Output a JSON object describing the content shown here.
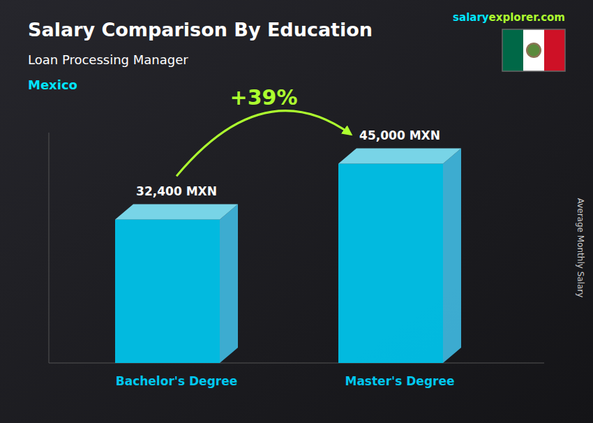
{
  "chart_data": {
    "type": "bar",
    "title": "Salary Comparison By Education",
    "subtitle": "Loan Processing Manager",
    "ylabel": "Average Monthly Salary",
    "categories": [
      "Bachelor's Degree",
      "Master's Degree"
    ],
    "values": [
      32400,
      45000
    ],
    "value_labels": [
      "32,400 MXN",
      "45,000 MXN"
    ],
    "color": "#00C8F0",
    "ylim": [
      0,
      52000
    ],
    "tick_labels": "x",
    "data_labels": true,
    "annotations": [
      "Mexico",
      "salary",
      "explorer.com",
      "+39%"
    ]
  }
}
